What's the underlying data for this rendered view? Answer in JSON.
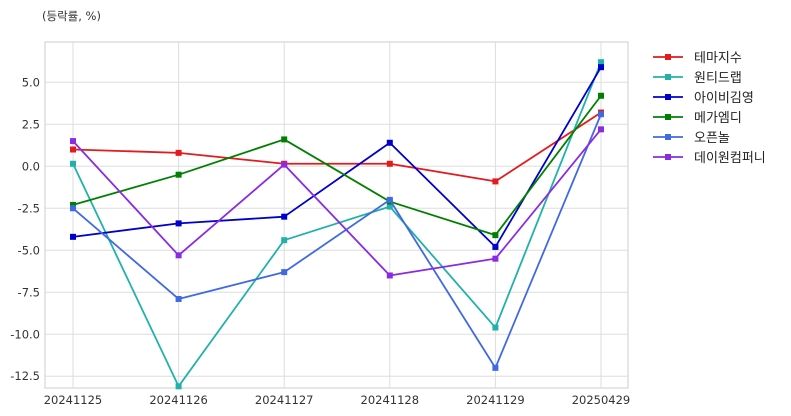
{
  "chart_data": {
    "type": "line",
    "unit_label": "(등락률, %)",
    "categories": [
      "20241125",
      "20241126",
      "20241127",
      "20241128",
      "20241129",
      "20250429"
    ],
    "ylim": [
      -13.2,
      7.4
    ],
    "yticks": [
      -12.5,
      -10.0,
      -7.5,
      -5.0,
      -2.5,
      0.0,
      2.5,
      5.0
    ],
    "ytick_labels": [
      "-12.5",
      "-10.0",
      "-7.5",
      "-5.0",
      "-2.5",
      "0.0",
      "2.5",
      "5.0"
    ],
    "grid": true,
    "legend_position": "outside-right",
    "series": [
      {
        "name": "테마지수",
        "color": "#e41a1c",
        "values": [
          1.0,
          0.8,
          0.15,
          0.15,
          -0.9,
          3.2
        ]
      },
      {
        "name": "원티드랩",
        "color": "#20b2aa",
        "values": [
          0.15,
          -13.1,
          -4.4,
          -2.4,
          -9.6,
          6.2
        ]
      },
      {
        "name": "아이비김영",
        "color": "#0000cd",
        "values": [
          -4.2,
          -3.4,
          -3.0,
          1.4,
          -4.8,
          5.9
        ]
      },
      {
        "name": "메가엠디",
        "color": "#008000",
        "values": [
          -2.3,
          -0.5,
          1.6,
          -2.1,
          -4.1,
          4.2
        ]
      },
      {
        "name": "오픈놀",
        "color": "#4169e1",
        "values": [
          -2.5,
          -7.9,
          -6.3,
          -2.0,
          -12.0,
          3.1
        ]
      },
      {
        "name": "데이원컴퍼니",
        "color": "#8a2be2",
        "values": [
          1.5,
          -5.3,
          0.1,
          -6.5,
          -5.5,
          2.2
        ]
      }
    ]
  }
}
